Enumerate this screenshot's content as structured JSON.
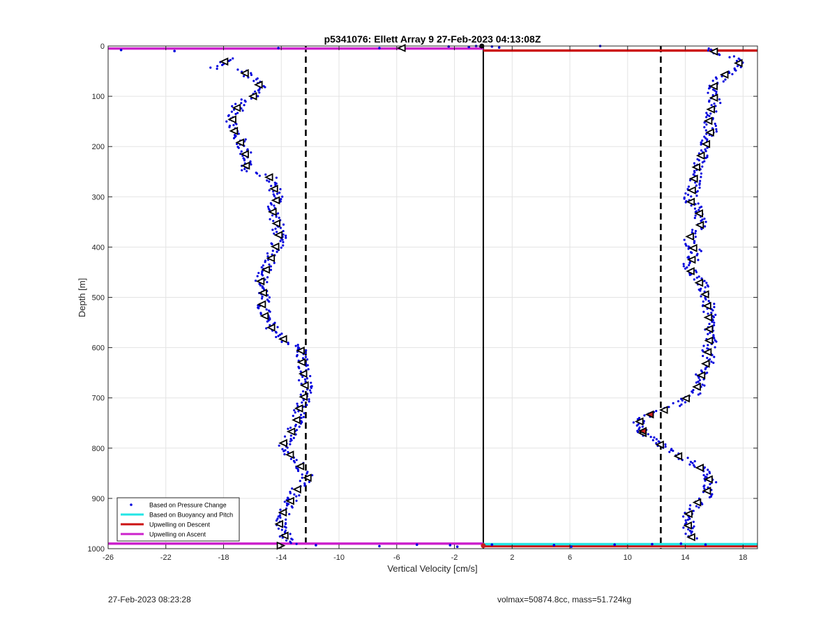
{
  "chart_data": {
    "type": "scatter",
    "title": "p5341076: Ellett Array 9 27-Feb-2023 04:13:08Z",
    "xlabel": "Vertical Velocity [cm/s]",
    "ylabel": "Depth [m]",
    "xlim": [
      -26,
      19
    ],
    "ylim": [
      0,
      1000
    ],
    "y_reversed": true,
    "grid": true,
    "xticks": [
      "-26",
      "-22",
      "-18",
      "-14",
      "-10",
      "-6",
      "-2",
      "2",
      "6",
      "10",
      "14",
      "18"
    ],
    "yticks": [
      "0",
      "100",
      "200",
      "300",
      "400",
      "500",
      "600",
      "700",
      "800",
      "900",
      "1000"
    ],
    "legend_position": "bottom-left",
    "legend": [
      {
        "label": "Based on Pressure Change",
        "color": "#0000dd"
      },
      {
        "label": "Based on Buoyancy and Pitch",
        "color": "#22e5e5"
      },
      {
        "label": "Upwelling on Descent",
        "color": "#cc1111"
      },
      {
        "label": "Upwelling on Ascent",
        "color": "#cc22cc"
      }
    ],
    "vertical_lines": [
      {
        "x": -12.3,
        "style": "dashed",
        "color": "#000000"
      },
      {
        "x": 12.3,
        "style": "dashed",
        "color": "#000000"
      },
      {
        "x": 0,
        "style": "solid",
        "color": "#000000"
      }
    ],
    "series": [
      {
        "name": "Based on Pressure Change",
        "left_profile": [
          [
            -17.5,
            25
          ],
          [
            -18.8,
            45
          ],
          [
            -17.0,
            35
          ],
          [
            -16.3,
            60
          ],
          [
            -15.8,
            70
          ],
          [
            -15.3,
            82
          ],
          [
            -15.9,
            100
          ],
          [
            -16.9,
            115
          ],
          [
            -17.3,
            140
          ],
          [
            -17.4,
            160
          ],
          [
            -16.9,
            185
          ],
          [
            -16.5,
            210
          ],
          [
            -16.3,
            235
          ],
          [
            -16.7,
            248
          ],
          [
            -14.8,
            260
          ],
          [
            -14.5,
            280
          ],
          [
            -14.2,
            300
          ],
          [
            -14.6,
            325
          ],
          [
            -14.3,
            350
          ],
          [
            -14.1,
            380
          ],
          [
            -14.5,
            410
          ],
          [
            -14.9,
            440
          ],
          [
            -15.4,
            465
          ],
          [
            -15.2,
            490
          ],
          [
            -15.3,
            520
          ],
          [
            -15.0,
            545
          ],
          [
            -14.4,
            570
          ],
          [
            -13.5,
            590
          ],
          [
            -12.6,
            605
          ],
          [
            -12.5,
            640
          ],
          [
            -12.3,
            670
          ],
          [
            -12.4,
            700
          ],
          [
            -12.7,
            720
          ],
          [
            -12.9,
            745
          ],
          [
            -13.2,
            765
          ],
          [
            -13.8,
            790
          ],
          [
            -13.3,
            815
          ],
          [
            -12.5,
            840
          ],
          [
            -12.1,
            860
          ],
          [
            -12.8,
            880
          ],
          [
            -13.2,
            900
          ],
          [
            -13.8,
            925
          ],
          [
            -14.1,
            950
          ],
          [
            -13.7,
            975
          ],
          [
            -12.8,
            992
          ]
        ],
        "right_profile": [
          [
            15.4,
            5
          ],
          [
            17.0,
            20
          ],
          [
            17.8,
            35
          ],
          [
            17.1,
            50
          ],
          [
            16.4,
            65
          ],
          [
            15.9,
            85
          ],
          [
            16.1,
            110
          ],
          [
            15.6,
            140
          ],
          [
            15.8,
            170
          ],
          [
            15.5,
            195
          ],
          [
            15.1,
            220
          ],
          [
            14.7,
            250
          ],
          [
            14.6,
            280
          ],
          [
            14.3,
            305
          ],
          [
            15.0,
            330
          ],
          [
            15.1,
            355
          ],
          [
            14.2,
            385
          ],
          [
            14.8,
            410
          ],
          [
            14.2,
            440
          ],
          [
            14.9,
            465
          ],
          [
            15.4,
            490
          ],
          [
            15.6,
            520
          ],
          [
            15.7,
            560
          ],
          [
            15.7,
            590
          ],
          [
            15.5,
            630
          ],
          [
            15.1,
            660
          ],
          [
            14.7,
            690
          ],
          [
            13.6,
            710
          ],
          [
            12.5,
            725
          ],
          [
            11.3,
            735
          ],
          [
            10.6,
            755
          ],
          [
            11.1,
            770
          ],
          [
            11.9,
            785
          ],
          [
            12.4,
            795
          ],
          [
            13.5,
            815
          ],
          [
            14.9,
            835
          ],
          [
            15.5,
            850
          ],
          [
            15.8,
            870
          ],
          [
            15.4,
            895
          ],
          [
            14.6,
            915
          ],
          [
            14.1,
            940
          ],
          [
            14.3,
            960
          ],
          [
            14.5,
            980
          ]
        ],
        "surface_points": [
          [
            -25.1,
            8
          ],
          [
            -21.4,
            10
          ],
          [
            -14.2,
            4
          ],
          [
            -7.2,
            4
          ],
          [
            -2.4,
            1
          ],
          [
            -1.0,
            2
          ],
          [
            -0.5,
            0
          ],
          [
            -0.2,
            1
          ],
          [
            0.6,
            1
          ],
          [
            1.1,
            3
          ],
          [
            8.1,
            0
          ]
        ],
        "bottom_points": [
          [
            -11.6,
            993
          ],
          [
            -7.2,
            995
          ],
          [
            -4.6,
            992
          ],
          [
            -2.3,
            993
          ],
          [
            -1.8,
            996
          ],
          [
            0.6,
            992
          ],
          [
            4.9,
            993
          ],
          [
            6.1,
            996
          ],
          [
            9.1,
            992
          ],
          [
            11.7,
            991
          ],
          [
            13.7,
            990
          ],
          [
            15.4,
            992
          ]
        ]
      },
      {
        "name": "Upwelling on Ascent",
        "segments": [
          [
            [
              -26,
              5
            ],
            [
              0,
              5
            ]
          ],
          [
            [
              -26,
              990
            ],
            [
              0,
              990
            ]
          ]
        ]
      },
      {
        "name": "Upwelling on Descent",
        "segments": [
          [
            [
              0,
              9
            ],
            [
              19,
              9
            ]
          ],
          [
            [
              0,
              995
            ],
            [
              19,
              995
            ]
          ]
        ]
      },
      {
        "name": "Based on Buoyancy and Pitch",
        "segments": [
          [
            [
              0,
              991
            ],
            [
              19,
              991
            ]
          ]
        ]
      }
    ]
  },
  "footer": {
    "left_timestamp": "27-Feb-2023 08:23:28",
    "right_info": "volmax=50874.8cc, mass=51.724kg"
  }
}
